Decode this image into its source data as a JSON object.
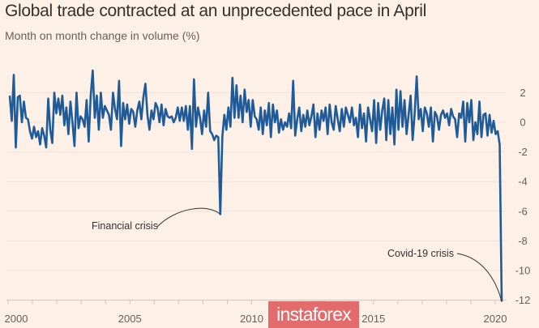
{
  "chart_data": {
    "type": "line",
    "title": "Global trade contracted at an unprecedented pace in April",
    "subtitle": "Month on month change in volume (%)",
    "xlabel": "",
    "ylabel": "",
    "x_start": "2000-01",
    "x_end": "2020-04",
    "frequency": "monthly",
    "x_ticks": [
      "2000",
      "2005",
      "2010",
      "2015",
      "2020"
    ],
    "y_ticks": [
      "2",
      "0",
      "-2",
      "-4",
      "-6",
      "-8",
      "-10",
      "-12"
    ],
    "ylim": [
      -12,
      2
    ],
    "xlim": [
      2000,
      2020.3
    ],
    "grid": true,
    "y_axis_side": "right",
    "line_color": "#1f5a99",
    "values": [
      1.8,
      0.1,
      3.2,
      -1.7,
      1.7,
      1.8,
      0.0,
      1.4,
      0.3,
      0.2,
      -0.6,
      -1.1,
      -0.3,
      -1.0,
      -0.6,
      -1.5,
      -0.4,
      -0.9,
      -1.7,
      1.6,
      -0.5,
      -1.4,
      2.0,
      0.6,
      1.6,
      0.5,
      1.8,
      -0.2,
      1.0,
      -0.8,
      1.4,
      0.0,
      -1.6,
      2.0,
      -0.4,
      0.4,
      0.2,
      -0.3,
      1.5,
      -1.3,
      1.8,
      3.5,
      0.3,
      1.8,
      -0.5,
      2.0,
      0.3,
      1.1,
      0.8,
      0.5,
      -0.5,
      2.0,
      0.9,
      0.2,
      2.8,
      -1.6,
      1.3,
      0.2,
      1.2,
      -0.1,
      0.9,
      0.7,
      -0.3,
      0.8,
      1.4,
      0.2,
      1.7,
      2.6,
      0.5,
      -0.5,
      0.8,
      0.2,
      1.3,
      1.0,
      0.0,
      1.2,
      -0.2,
      0.9,
      0.4,
      0.3,
      0.4,
      0.0,
      0.3,
      1.0,
      0.1,
      1.0,
      0.1,
      1.1,
      -0.5,
      1.1,
      -1.8,
      2.9,
      -0.3,
      1.0,
      0.3,
      -0.8,
      0.8,
      -0.3,
      2.0,
      -0.6,
      -0.8,
      -1.2,
      -0.9,
      -1.0,
      -6.2,
      -1.0,
      0.5,
      -0.5,
      1.0,
      -0.3,
      3.0,
      0.3,
      2.5,
      0.3,
      1.8,
      0.0,
      2.2,
      0.7,
      1.5,
      -0.3,
      1.5,
      0.4,
      0.2,
      -0.5,
      1.0,
      -0.8,
      0.8,
      -0.2,
      1.3,
      -1.0,
      1.2,
      0.0,
      0.8,
      -0.7,
      0.2,
      -0.5,
      0.0,
      -0.3,
      0.6,
      -0.4,
      2.8,
      -0.9,
      0.2,
      1.0,
      -0.6,
      0.5,
      -0.3,
      0.8,
      -0.2,
      0.4,
      1.2,
      -1.0,
      0.6,
      -0.5,
      0.8,
      0.1,
      1.0,
      -0.8,
      1.2,
      0.0,
      -0.5,
      1.1,
      0.2,
      -0.6,
      0.9,
      -0.3,
      1.0,
      0.5,
      0.0,
      1.0,
      -0.2,
      0.3,
      -1.0,
      1.2,
      -0.4,
      0.6,
      -1.3,
      1.0,
      0.2,
      -0.6,
      1.5,
      -1.4,
      1.3,
      -0.5,
      0.8,
      1.6,
      -1.2,
      1.5,
      -0.8,
      1.0,
      -1.5,
      2.2,
      -0.5,
      2.1,
      -0.3,
      1.5,
      -0.8,
      0.5,
      1.8,
      -1.2,
      0.6,
      3.1,
      0.2,
      0.9,
      -0.6,
      1.0,
      0.6,
      -0.3,
      1.0,
      -1.3,
      0.7,
      0.4,
      -0.5,
      0.5,
      0.8,
      0.3,
      0.6,
      -0.2,
      0.9,
      0.4,
      0.2,
      -1.0,
      0.6,
      0.3,
      1.4,
      -1.3,
      1.3,
      0.0,
      1.5,
      -1.2,
      0.0,
      -0.8,
      1.4,
      -1.0,
      0.5,
      0.6,
      -0.9,
      0.5,
      -0.7,
      0.1,
      -0.8,
      -0.6,
      -1.5,
      -12.1
    ],
    "annotations": [
      {
        "text": "Financial crisis",
        "x": "2008-09",
        "y": -6.2
      },
      {
        "text": "Covid-19 crisis",
        "x": "2020-04",
        "y": -12.1
      }
    ]
  },
  "watermark": "instaforex"
}
